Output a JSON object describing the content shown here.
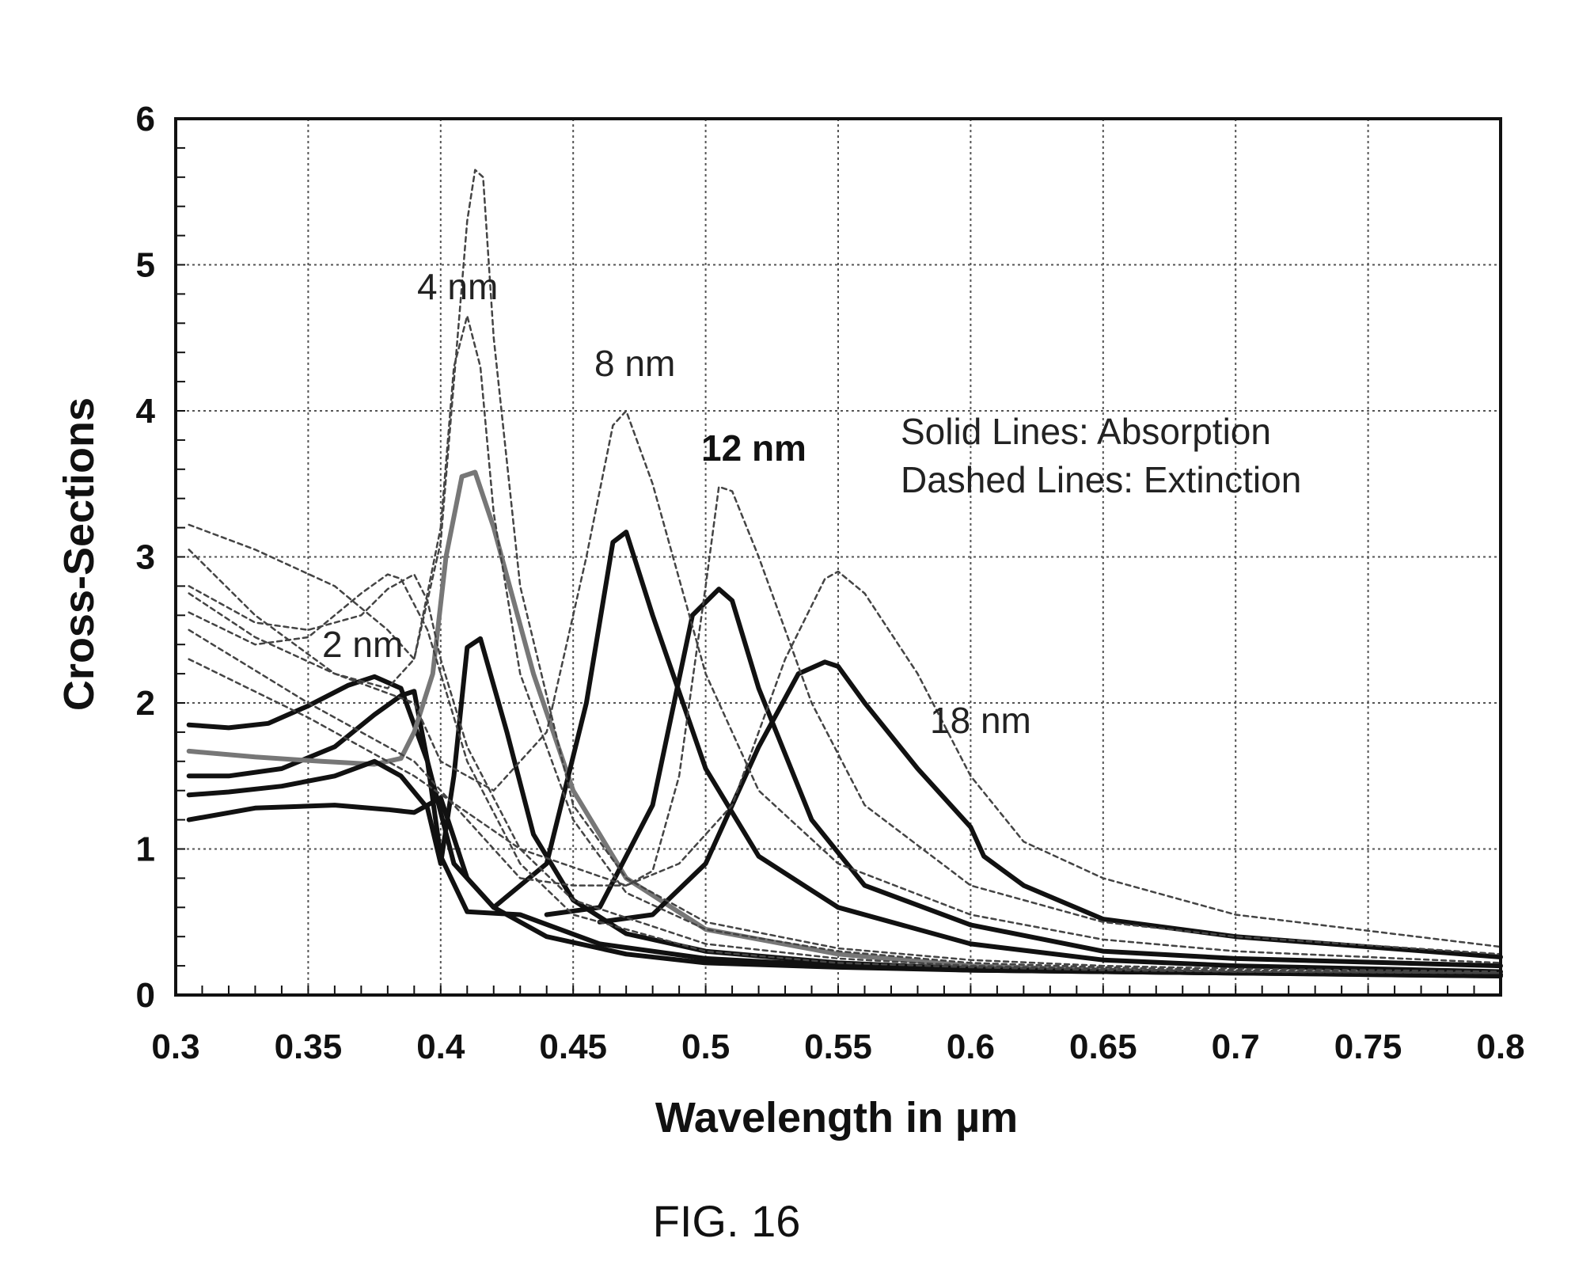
{
  "chart_data": {
    "type": "line",
    "xlabel": "Wavelength in µm",
    "ylabel": "Cross-Sections",
    "xlim": [
      0.3,
      0.8
    ],
    "ylim": [
      0,
      6
    ],
    "xticks": [
      "0.3",
      "0.35",
      "0.4",
      "0.45",
      "0.5",
      "0.55",
      "0.6",
      "0.65",
      "0.7",
      "0.75",
      "0.8"
    ],
    "yticks": [
      "0",
      "1",
      "2",
      "3",
      "4",
      "5",
      "6"
    ],
    "grid": true,
    "annotations": {
      "size_2nm": "2 nm",
      "size_4nm": "4 nm",
      "size_8nm": "8 nm",
      "size_12nm": "12 nm",
      "size_18nm": "18 nm",
      "legend_solid": "Solid Lines: Absorption",
      "legend_dashed": "Dashed Lines: Extinction"
    },
    "series": [
      {
        "style": "solid",
        "color": "#111111",
        "x": [
          0.305,
          0.32,
          0.335,
          0.35,
          0.365,
          0.375,
          0.385,
          0.395,
          0.405,
          0.42,
          0.44,
          0.47,
          0.5,
          0.55,
          0.6,
          0.65,
          0.7,
          0.8
        ],
        "y": [
          1.85,
          1.83,
          1.86,
          1.98,
          2.12,
          2.18,
          2.1,
          1.6,
          0.9,
          0.6,
          0.4,
          0.28,
          0.22,
          0.19,
          0.17,
          0.16,
          0.15,
          0.14
        ]
      },
      {
        "style": "solid",
        "color": "#111111",
        "x": [
          0.305,
          0.32,
          0.34,
          0.36,
          0.375,
          0.385,
          0.39,
          0.395,
          0.4,
          0.41,
          0.43,
          0.46,
          0.5,
          0.55,
          0.6,
          0.65,
          0.7,
          0.8
        ],
        "y": [
          1.5,
          1.5,
          1.55,
          1.7,
          1.92,
          2.05,
          2.08,
          1.6,
          0.95,
          0.57,
          0.55,
          0.35,
          0.25,
          0.2,
          0.17,
          0.16,
          0.15,
          0.14
        ]
      },
      {
        "style": "solid",
        "color": "#777777",
        "x": [
          0.305,
          0.33,
          0.355,
          0.375,
          0.385,
          0.39,
          0.397,
          0.402,
          0.408,
          0.413,
          0.42,
          0.435,
          0.45,
          0.47,
          0.5,
          0.55,
          0.6,
          0.65,
          0.7,
          0.8
        ],
        "y": [
          1.67,
          1.63,
          1.6,
          1.58,
          1.62,
          1.8,
          2.2,
          3.0,
          3.55,
          3.58,
          3.2,
          2.2,
          1.4,
          0.8,
          0.45,
          0.28,
          0.2,
          0.17,
          0.15,
          0.13
        ]
      },
      {
        "style": "solid",
        "color": "#111111",
        "x": [
          0.305,
          0.32,
          0.34,
          0.36,
          0.375,
          0.385,
          0.395,
          0.4,
          0.405,
          0.41,
          0.415,
          0.425,
          0.435,
          0.45,
          0.47,
          0.5,
          0.55,
          0.6,
          0.65,
          0.7,
          0.8
        ],
        "y": [
          1.37,
          1.39,
          1.43,
          1.5,
          1.6,
          1.5,
          1.28,
          0.9,
          1.5,
          2.38,
          2.44,
          1.8,
          1.1,
          0.65,
          0.42,
          0.3,
          0.22,
          0.18,
          0.16,
          0.15,
          0.13
        ]
      },
      {
        "style": "solid",
        "color": "#111111",
        "x": [
          0.305,
          0.33,
          0.36,
          0.38,
          0.39,
          0.4,
          0.41,
          0.42,
          0.44,
          0.455,
          0.465,
          0.47,
          0.48,
          0.5,
          0.52,
          0.55,
          0.6,
          0.65,
          0.7,
          0.8
        ],
        "y": [
          1.2,
          1.28,
          1.3,
          1.27,
          1.25,
          1.35,
          0.8,
          0.6,
          0.9,
          2.0,
          3.1,
          3.17,
          2.6,
          1.55,
          0.95,
          0.6,
          0.35,
          0.24,
          0.2,
          0.16
        ]
      },
      {
        "style": "solid",
        "color": "#111111",
        "x": [
          0.44,
          0.46,
          0.48,
          0.495,
          0.505,
          0.51,
          0.52,
          0.54,
          0.56,
          0.6,
          0.65,
          0.7,
          0.8
        ],
        "y": [
          0.55,
          0.6,
          1.3,
          2.6,
          2.78,
          2.7,
          2.1,
          1.2,
          0.75,
          0.48,
          0.3,
          0.25,
          0.2
        ]
      },
      {
        "style": "solid",
        "color": "#111111",
        "x": [
          0.46,
          0.48,
          0.5,
          0.52,
          0.535,
          0.545,
          0.55,
          0.56,
          0.58,
          0.6,
          0.605,
          0.62,
          0.65,
          0.7,
          0.8
        ],
        "y": [
          0.5,
          0.55,
          0.9,
          1.7,
          2.2,
          2.28,
          2.25,
          2.0,
          1.55,
          1.15,
          0.95,
          0.75,
          0.52,
          0.4,
          0.26
        ]
      },
      {
        "style": "dashed",
        "color": "#444444",
        "x": [
          0.305,
          0.33,
          0.35,
          0.37,
          0.38,
          0.385,
          0.395,
          0.41,
          0.43,
          0.45,
          0.5,
          0.55,
          0.6,
          0.65,
          0.7,
          0.8
        ],
        "y": [
          2.62,
          2.4,
          2.45,
          2.75,
          2.88,
          2.85,
          2.5,
          1.6,
          0.9,
          0.55,
          0.3,
          0.22,
          0.19,
          0.17,
          0.16,
          0.15
        ]
      },
      {
        "style": "dashed",
        "color": "#444444",
        "x": [
          0.305,
          0.33,
          0.35,
          0.37,
          0.38,
          0.39,
          0.395,
          0.4,
          0.41,
          0.43,
          0.45,
          0.5,
          0.55,
          0.6,
          0.65,
          0.7,
          0.8
        ],
        "y": [
          2.8,
          2.55,
          2.5,
          2.6,
          2.78,
          2.88,
          2.7,
          2.3,
          1.7,
          1.0,
          0.65,
          0.35,
          0.25,
          0.2,
          0.18,
          0.16,
          0.15
        ]
      },
      {
        "style": "dashed",
        "color": "#444444",
        "x": [
          0.305,
          0.33,
          0.36,
          0.38,
          0.39,
          0.4,
          0.405,
          0.41,
          0.415,
          0.42,
          0.43,
          0.45,
          0.47,
          0.5,
          0.55,
          0.6,
          0.65,
          0.7,
          0.8
        ],
        "y": [
          3.05,
          2.6,
          2.2,
          2.1,
          2.3,
          3.2,
          4.3,
          4.65,
          4.3,
          3.3,
          2.2,
          1.2,
          0.7,
          0.45,
          0.3,
          0.22,
          0.19,
          0.17,
          0.15
        ]
      },
      {
        "style": "dashed",
        "color": "#444444",
        "x": [
          0.305,
          0.33,
          0.36,
          0.38,
          0.39,
          0.4,
          0.405,
          0.41,
          0.413,
          0.416,
          0.42,
          0.43,
          0.45,
          0.47,
          0.5,
          0.55,
          0.6,
          0.65,
          0.7,
          0.8
        ],
        "y": [
          3.22,
          3.05,
          2.8,
          2.5,
          2.3,
          3.1,
          4.2,
          5.3,
          5.65,
          5.6,
          4.5,
          2.8,
          1.3,
          0.8,
          0.5,
          0.32,
          0.24,
          0.2,
          0.18,
          0.16
        ]
      },
      {
        "style": "dashed",
        "color": "#444444",
        "x": [
          0.305,
          0.33,
          0.36,
          0.39,
          0.4,
          0.42,
          0.44,
          0.455,
          0.465,
          0.47,
          0.48,
          0.5,
          0.52,
          0.55,
          0.6,
          0.65,
          0.7,
          0.8
        ],
        "y": [
          2.75,
          2.45,
          2.2,
          2.0,
          1.6,
          1.4,
          1.8,
          3.0,
          3.9,
          4.0,
          3.5,
          2.2,
          1.4,
          0.9,
          0.55,
          0.38,
          0.3,
          0.22
        ]
      },
      {
        "style": "dashed",
        "color": "#444444",
        "x": [
          0.305,
          0.35,
          0.39,
          0.41,
          0.43,
          0.45,
          0.47,
          0.48,
          0.49,
          0.5,
          0.505,
          0.51,
          0.52,
          0.54,
          0.56,
          0.6,
          0.65,
          0.7,
          0.8
        ],
        "y": [
          2.5,
          2.0,
          1.6,
          1.2,
          0.8,
          0.75,
          0.75,
          0.85,
          1.5,
          2.8,
          3.48,
          3.45,
          3.0,
          2.0,
          1.3,
          0.75,
          0.5,
          0.4,
          0.28
        ]
      },
      {
        "style": "dashed",
        "color": "#444444",
        "x": [
          0.305,
          0.35,
          0.39,
          0.43,
          0.47,
          0.49,
          0.51,
          0.53,
          0.545,
          0.55,
          0.56,
          0.58,
          0.6,
          0.62,
          0.65,
          0.7,
          0.8
        ],
        "y": [
          2.3,
          1.9,
          1.5,
          1.0,
          0.75,
          0.9,
          1.3,
          2.3,
          2.85,
          2.9,
          2.75,
          2.2,
          1.5,
          1.05,
          0.8,
          0.55,
          0.33
        ]
      }
    ]
  },
  "caption": "FIG. 16"
}
